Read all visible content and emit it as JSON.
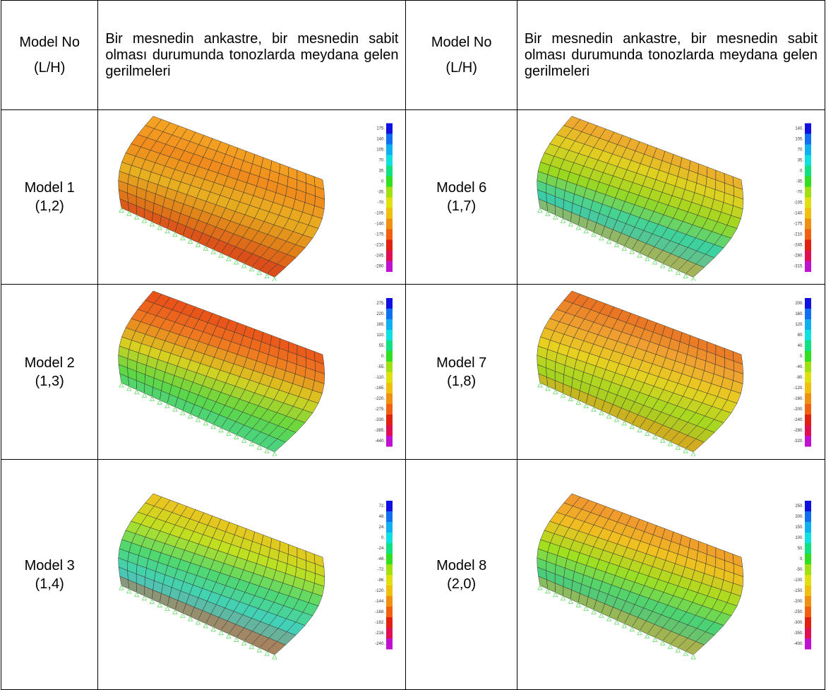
{
  "header": {
    "col1": [
      "Model No",
      "(L/H)"
    ],
    "col2": "Bir mesnedin ankastre, bir mesnedin sabit olması durumunda tonozlarda meydana gelen gerilmeleri",
    "col3": [
      "Model No",
      "(L/H)"
    ],
    "col4": "Bir mesnedin ankastre, bir mesnedin sabit olması durumunda tonozlarda meydana gelen gerilmeleri"
  },
  "rows": [
    [
      {
        "model": "Model 1",
        "ratio": "(1,2)",
        "legend": [
          "175.",
          "140.",
          "105.",
          "70.",
          "35.",
          "0.",
          "-35.",
          "-70.",
          "-105.",
          "-140.",
          "-175.",
          "-210.",
          "-245.",
          "-280."
        ]
      },
      {
        "model": "Model 6",
        "ratio": "(1,7)",
        "legend": [
          "140.",
          "105.",
          "70.",
          "35.",
          "0.",
          "-35.",
          "-70.",
          "-105.",
          "-140.",
          "-175.",
          "-210.",
          "-245.",
          "-280.",
          "-315."
        ]
      }
    ],
    [
      {
        "model": "Model 2",
        "ratio": "(1,3)",
        "legend": [
          "275.",
          "220.",
          "165.",
          "110.",
          "55.",
          "0.",
          "-55.",
          "-110.",
          "-165.",
          "-220.",
          "-275.",
          "-330.",
          "-385.",
          "-440."
        ]
      },
      {
        "model": "Model 7",
        "ratio": "(1,8)",
        "legend": [
          "200.",
          "160.",
          "120.",
          "80.",
          "40.",
          "0.",
          "-40.",
          "-80.",
          "-120.",
          "-160.",
          "-200.",
          "-240.",
          "-280.",
          "-320."
        ]
      }
    ],
    [
      {
        "model": "Model 3",
        "ratio": "(1,4)",
        "legend": [
          "72.",
          "48.",
          "24.",
          "0.",
          "-24.",
          "-48.",
          "-72.",
          "-96.",
          "-120.",
          "-144.",
          "-168.",
          "-192.",
          "-216.",
          "-240."
        ]
      },
      {
        "model": "Model 8",
        "ratio": "(2,0)",
        "legend": [
          "250.",
          "200.",
          "150.",
          "100.",
          "50.",
          "0.",
          "-50.",
          "-100.",
          "-150.",
          "-200.",
          "-250.",
          "-300.",
          "-350.",
          "-400."
        ]
      }
    ]
  ]
}
